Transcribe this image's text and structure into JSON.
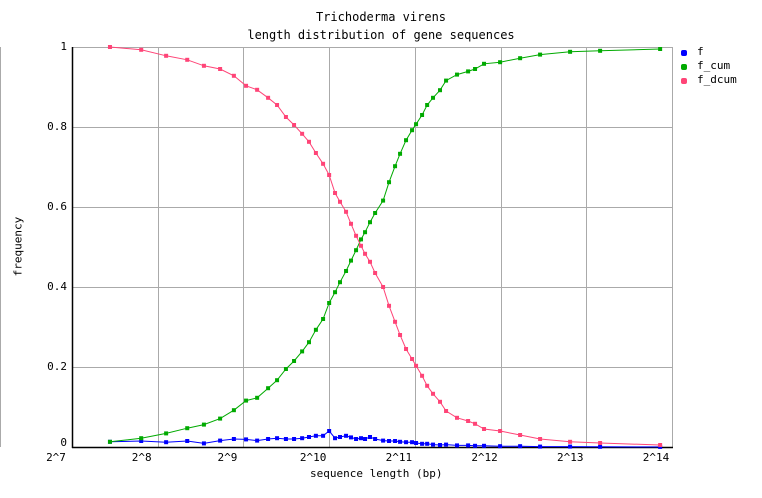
{
  "chart_data": {
    "type": "line",
    "title": "Trichoderma virens",
    "subtitle": "length distribution of gene sequences",
    "xlabel": "sequence length (bp)",
    "ylabel": "frequency",
    "x_scale": "log2",
    "xlim": [
      128,
      16384
    ],
    "ylim": [
      0,
      1
    ],
    "x_tick_labels": [
      "2^7",
      "2^8",
      "2^9",
      "2^10",
      "2^11",
      "2^12",
      "2^13",
      "2^14"
    ],
    "y_tick_labels": [
      "0",
      "0.2",
      "0.4",
      "0.6",
      "0.8",
      "1"
    ],
    "grid": true,
    "legend_position": "right",
    "x": [
      174,
      224,
      274,
      325,
      372,
      424,
      474,
      523,
      572,
      625,
      672,
      722,
      771,
      823,
      870,
      920,
      975,
      1024,
      1074,
      1118,
      1174,
      1222,
      1273,
      1325,
      1369,
      1425,
      1485,
      1584,
      1662,
      1745,
      1817,
      1907,
      2002,
      2068,
      2171,
      2262,
      2372,
      2510,
      2636,
      2880,
      3150,
      3332,
      3583,
      4080,
      4797,
      5638,
      7186,
      9160,
      14885
    ],
    "series": [
      {
        "name": "f",
        "color": "#0000ff",
        "values": [
          0.013,
          0.015,
          0.012,
          0.015,
          0.009,
          0.016,
          0.02,
          0.019,
          0.016,
          0.02,
          0.022,
          0.02,
          0.02,
          0.022,
          0.025,
          0.028,
          0.028,
          0.04,
          0.022,
          0.025,
          0.028,
          0.024,
          0.02,
          0.022,
          0.02,
          0.025,
          0.02,
          0.016,
          0.015,
          0.015,
          0.013,
          0.012,
          0.012,
          0.01,
          0.008,
          0.008,
          0.006,
          0.005,
          0.006,
          0.004,
          0.004,
          0.003,
          0.003,
          0.002,
          0.002,
          0.001,
          0.001,
          0.0005,
          0.0002
        ]
      },
      {
        "name": "f_cum",
        "color": "#00aa00",
        "values": [
          0.013,
          0.022,
          0.034,
          0.047,
          0.056,
          0.071,
          0.092,
          0.116,
          0.123,
          0.147,
          0.167,
          0.195,
          0.215,
          0.239,
          0.262,
          0.293,
          0.32,
          0.36,
          0.387,
          0.412,
          0.44,
          0.466,
          0.492,
          0.519,
          0.537,
          0.562,
          0.585,
          0.616,
          0.662,
          0.702,
          0.733,
          0.767,
          0.792,
          0.807,
          0.83,
          0.855,
          0.873,
          0.892,
          0.916,
          0.931,
          0.939,
          0.945,
          0.958,
          0.962,
          0.972,
          0.981,
          0.988,
          0.9905,
          0.995
        ]
      },
      {
        "name": "f_dcum",
        "color": "#ff4477",
        "values": [
          1,
          0.993,
          0.978,
          0.968,
          0.953,
          0.945,
          0.928,
          0.903,
          0.893,
          0.873,
          0.855,
          0.825,
          0.805,
          0.783,
          0.763,
          0.735,
          0.708,
          0.68,
          0.635,
          0.613,
          0.588,
          0.558,
          0.528,
          0.503,
          0.483,
          0.463,
          0.435,
          0.4,
          0.353,
          0.313,
          0.28,
          0.245,
          0.22,
          0.203,
          0.178,
          0.153,
          0.133,
          0.113,
          0.09,
          0.073,
          0.065,
          0.058,
          0.045,
          0.04,
          0.03,
          0.02,
          0.013,
          0.01,
          0.005
        ]
      }
    ]
  }
}
